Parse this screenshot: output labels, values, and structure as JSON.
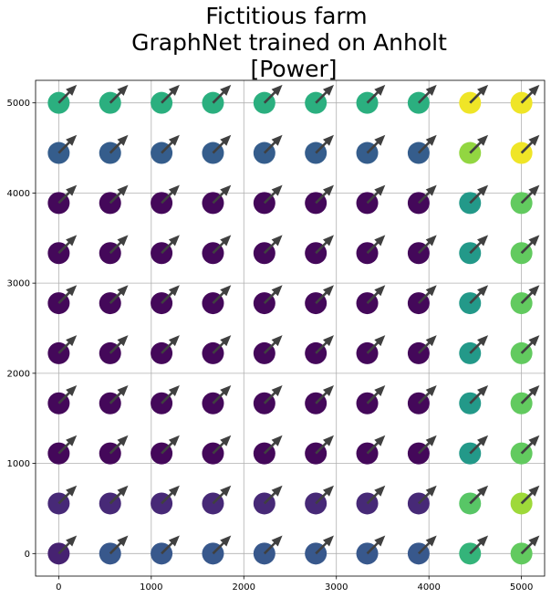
{
  "chart_data": {
    "type": "scatter",
    "title_lines": [
      "Fictitious farm",
      "GraphNet trained on Anholt",
      "[Power]"
    ],
    "xlabel": "",
    "ylabel": "",
    "xlim": [
      -250,
      5250
    ],
    "ylim": [
      -250,
      5250
    ],
    "xticks": [
      0,
      1000,
      2000,
      3000,
      4000,
      5000
    ],
    "yticks": [
      0,
      1000,
      2000,
      3000,
      4000,
      5000
    ],
    "grid": true,
    "colormap": "viridis",
    "x": [
      0,
      555.6,
      1111.1,
      1666.7,
      2222.2,
      2777.8,
      3333.3,
      3888.9,
      4444.4,
      5000
    ],
    "y": [
      0,
      555.6,
      1111.1,
      1666.7,
      2222.2,
      2777.8,
      3333.3,
      3888.9,
      4444.4,
      5000
    ],
    "power_rows": [
      [
        0.1,
        0.28,
        0.28,
        0.28,
        0.28,
        0.28,
        0.28,
        0.28,
        0.66,
        0.76
      ],
      [
        0.12,
        0.12,
        0.12,
        0.12,
        0.12,
        0.12,
        0.12,
        0.12,
        0.74,
        0.86
      ],
      [
        0.02,
        0.02,
        0.02,
        0.02,
        0.02,
        0.02,
        0.02,
        0.02,
        0.54,
        0.76
      ],
      [
        0.02,
        0.02,
        0.02,
        0.02,
        0.02,
        0.02,
        0.02,
        0.02,
        0.54,
        0.76
      ],
      [
        0.02,
        0.02,
        0.02,
        0.02,
        0.02,
        0.02,
        0.02,
        0.02,
        0.54,
        0.76
      ],
      [
        0.02,
        0.02,
        0.02,
        0.02,
        0.02,
        0.02,
        0.02,
        0.02,
        0.54,
        0.76
      ],
      [
        0.02,
        0.02,
        0.02,
        0.02,
        0.02,
        0.02,
        0.02,
        0.02,
        0.54,
        0.76
      ],
      [
        0.02,
        0.02,
        0.02,
        0.02,
        0.02,
        0.02,
        0.02,
        0.02,
        0.54,
        0.76
      ],
      [
        0.3,
        0.3,
        0.3,
        0.3,
        0.3,
        0.3,
        0.3,
        0.3,
        0.84,
        0.98
      ],
      [
        0.64,
        0.64,
        0.64,
        0.64,
        0.64,
        0.64,
        0.64,
        0.64,
        0.98,
        0.98
      ]
    ],
    "wind_arrow_direction_deg": 45,
    "arrow_color": "#404040"
  }
}
